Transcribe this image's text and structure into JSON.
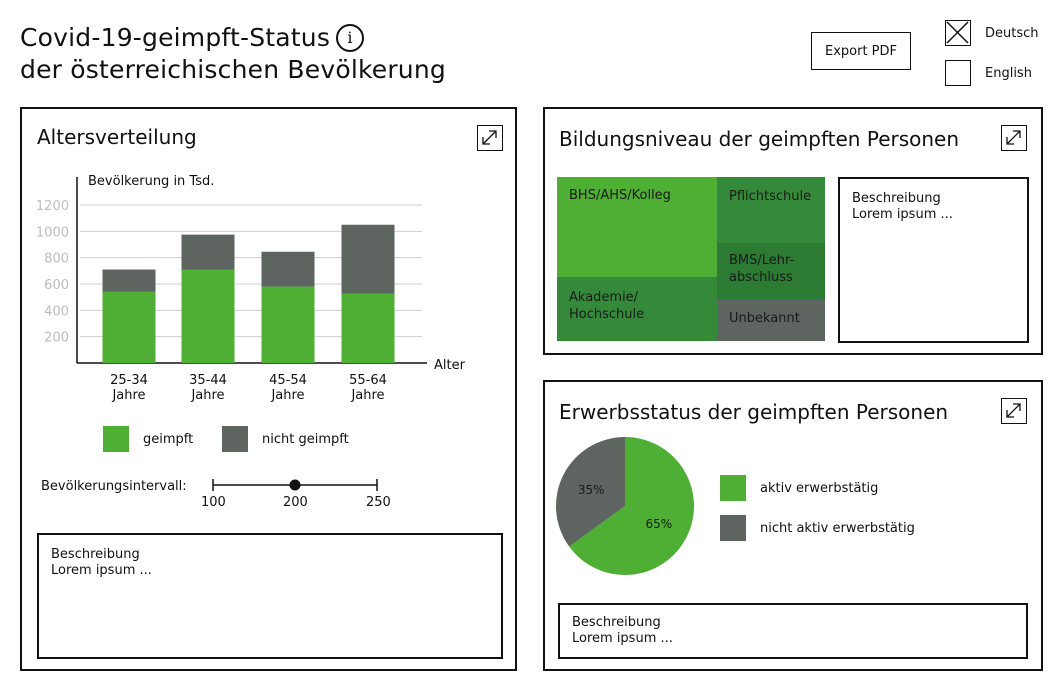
{
  "header": {
    "title_line1": "Covid-19-geimpft-Status",
    "title_line2": "der österreichischen Bevölkerung",
    "info_glyph": "i",
    "export_label": "Export PDF",
    "languages": [
      {
        "label": "Deutsch",
        "checked": true
      },
      {
        "label": "English",
        "checked": false
      }
    ]
  },
  "colors": {
    "green": "#4fae34",
    "dark_green": "#35893a",
    "darker_green": "#2d7a32",
    "grey": "#5e6560",
    "grid": "#cfcfcf"
  },
  "age_panel": {
    "title": "Altersverteilung",
    "slider": {
      "label": "Bevölkerungsintervall:",
      "ticks": [
        "100",
        "200",
        "250"
      ],
      "value": 200
    },
    "description": {
      "heading": "Beschreibung",
      "text": "Lorem ipsum ..."
    }
  },
  "chart_data": {
    "type": "bar",
    "stacked": true,
    "ylabel": "Bevölkerung in Tsd.",
    "xlabel": "Alter",
    "yticks": [
      200,
      400,
      600,
      800,
      1000,
      1200
    ],
    "ylim": [
      0,
      1200
    ],
    "categories": [
      [
        "25-34",
        "Jahre"
      ],
      [
        "35-44",
        "Jahre"
      ],
      [
        "45-54",
        "Jahre"
      ],
      [
        "55-64",
        "Jahre"
      ]
    ],
    "series": [
      {
        "name": "geimpft",
        "color": "#4fae34",
        "values": [
          540,
          710,
          580,
          525
        ]
      },
      {
        "name": "nicht geimpft",
        "color": "#5e6560",
        "values": [
          170,
          265,
          265,
          525
        ]
      }
    ],
    "grid": true
  },
  "education_panel": {
    "title": "Bildungsniveau der geimpften Personen",
    "cells": [
      "BHS/AHS/Kolleg",
      "Pflichtschule",
      "BMS/Lehr-\nabschluss",
      "Akademie/\nHochschule",
      "Unbekannt"
    ],
    "description": {
      "heading": "Beschreibung",
      "text": "Lorem ipsum ..."
    }
  },
  "employment_panel": {
    "title": "Erwerbsstatus der geimpften Personen",
    "pie": [
      {
        "name": "aktiv erwerbstätig",
        "value": 65,
        "label": "65%",
        "color": "#4fae34"
      },
      {
        "name": "nicht aktiv erwerbstätig",
        "value": 35,
        "label": "35%",
        "color": "#5e6560"
      }
    ],
    "description": {
      "heading": "Beschreibung",
      "text": "Lorem ipsum ..."
    }
  }
}
